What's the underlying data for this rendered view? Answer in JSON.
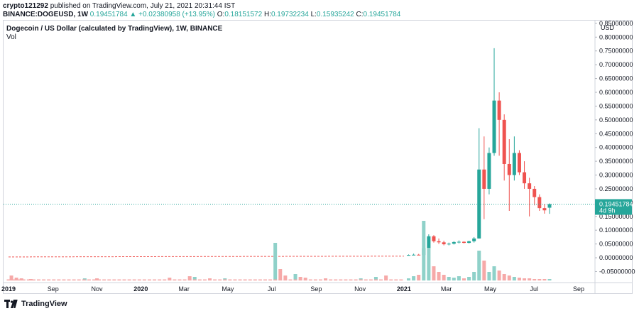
{
  "header": {
    "author": "crypto121292",
    "published": "published on TradingView.com, July 21, 2021 20:31:44 IST",
    "symbol": "BINANCE:DOGEUSD, 1W",
    "last": "0.19451784",
    "change": "▲ +0.02380958 (+13.95%)",
    "o_label": "O:",
    "o_value": "0.18151572",
    "h_label": "H:",
    "h_value": "0.19732234",
    "l_label": "L:",
    "l_value": "0.15935242",
    "c_label": "C:",
    "c_value": "0.19451784"
  },
  "footer": {
    "brand": "TradingView",
    "logo_icon": "tradingview-logo-icon"
  },
  "colors": {
    "up": "#26a69a",
    "down": "#ef5350",
    "up_vol": "#8fd1c9",
    "down_vol": "#f6a9a8"
  },
  "chart_data": {
    "type": "candlestick",
    "title": "Dogecoin / US Dollar (calculated by TradingView), 1W, BINANCE",
    "volume_label": "Vol",
    "y_unit": "USD",
    "ylim": [
      -0.09,
      0.86
    ],
    "y_ticks": [
      "0.85000000",
      "0.80000000",
      "0.75000000",
      "0.70000000",
      "0.65000000",
      "0.60000000",
      "0.55000000",
      "0.50000000",
      "0.45000000",
      "0.40000000",
      "0.35000000",
      "0.30000000",
      "0.25000000",
      "0.20000000",
      "0.15000000",
      "0.10000000",
      "0.05000000",
      "0.00000000",
      "-0.05000000"
    ],
    "x_ticks": [
      {
        "label": "2019",
        "year": true
      },
      {
        "label": "Sep",
        "year": false
      },
      {
        "label": "Nov",
        "year": false
      },
      {
        "label": "2020",
        "year": true
      },
      {
        "label": "Mar",
        "year": false
      },
      {
        "label": "May",
        "year": false
      },
      {
        "label": "Jul",
        "year": false
      },
      {
        "label": "Sep",
        "year": false
      },
      {
        "label": "Nov",
        "year": false
      },
      {
        "label": "2021",
        "year": true
      },
      {
        "label": "Mar",
        "year": false
      },
      {
        "label": "May",
        "year": false
      },
      {
        "label": "Jul",
        "year": false
      },
      {
        "label": "Sep",
        "year": false
      }
    ],
    "last_price": "0.19451784",
    "last_countdown": "4d 9h",
    "candles": [
      {
        "date": "2021-01-04",
        "o": 0.01,
        "h": 0.012,
        "l": 0.008,
        "c": 0.01
      },
      {
        "date": "2021-01-11",
        "o": 0.01,
        "h": 0.015,
        "l": 0.009,
        "c": 0.011
      },
      {
        "date": "2021-01-18",
        "o": 0.011,
        "h": 0.014,
        "l": 0.009,
        "c": 0.01
      },
      {
        "date": "2021-01-25",
        "o": 0.01,
        "h": 0.08,
        "l": 0.008,
        "c": 0.035
      },
      {
        "date": "2021-02-01",
        "o": 0.035,
        "h": 0.085,
        "l": 0.028,
        "c": 0.078
      },
      {
        "date": "2021-02-08",
        "o": 0.078,
        "h": 0.082,
        "l": 0.055,
        "c": 0.06
      },
      {
        "date": "2021-02-15",
        "o": 0.06,
        "h": 0.07,
        "l": 0.05,
        "c": 0.056
      },
      {
        "date": "2021-02-22",
        "o": 0.056,
        "h": 0.062,
        "l": 0.045,
        "c": 0.049
      },
      {
        "date": "2021-03-01",
        "o": 0.049,
        "h": 0.055,
        "l": 0.045,
        "c": 0.051
      },
      {
        "date": "2021-03-08",
        "o": 0.051,
        "h": 0.06,
        "l": 0.048,
        "c": 0.057
      },
      {
        "date": "2021-03-15",
        "o": 0.057,
        "h": 0.063,
        "l": 0.052,
        "c": 0.058
      },
      {
        "date": "2021-03-22",
        "o": 0.058,
        "h": 0.06,
        "l": 0.052,
        "c": 0.054
      },
      {
        "date": "2021-03-29",
        "o": 0.054,
        "h": 0.062,
        "l": 0.052,
        "c": 0.06
      },
      {
        "date": "2021-04-05",
        "o": 0.06,
        "h": 0.075,
        "l": 0.055,
        "c": 0.07
      },
      {
        "date": "2021-04-12",
        "o": 0.07,
        "h": 0.47,
        "l": 0.07,
        "c": 0.32
      },
      {
        "date": "2021-04-19",
        "o": 0.32,
        "h": 0.44,
        "l": 0.14,
        "c": 0.25
      },
      {
        "date": "2021-04-26",
        "o": 0.25,
        "h": 0.4,
        "l": 0.23,
        "c": 0.38
      },
      {
        "date": "2021-05-03",
        "o": 0.38,
        "h": 0.76,
        "l": 0.37,
        "c": 0.57
      },
      {
        "date": "2021-05-10",
        "o": 0.57,
        "h": 0.6,
        "l": 0.37,
        "c": 0.5
      },
      {
        "date": "2021-05-17",
        "o": 0.5,
        "h": 0.52,
        "l": 0.28,
        "c": 0.34
      },
      {
        "date": "2021-05-24",
        "o": 0.34,
        "h": 0.43,
        "l": 0.17,
        "c": 0.3
      },
      {
        "date": "2021-05-31",
        "o": 0.3,
        "h": 0.44,
        "l": 0.28,
        "c": 0.38
      },
      {
        "date": "2021-06-07",
        "o": 0.38,
        "h": 0.39,
        "l": 0.3,
        "c": 0.31
      },
      {
        "date": "2021-06-14",
        "o": 0.31,
        "h": 0.35,
        "l": 0.25,
        "c": 0.27
      },
      {
        "date": "2021-06-21",
        "o": 0.27,
        "h": 0.29,
        "l": 0.15,
        "c": 0.25
      },
      {
        "date": "2021-06-28",
        "o": 0.25,
        "h": 0.26,
        "l": 0.19,
        "c": 0.22
      },
      {
        "date": "2021-07-05",
        "o": 0.22,
        "h": 0.23,
        "l": 0.17,
        "c": 0.18
      },
      {
        "date": "2021-07-12",
        "o": 0.18,
        "h": 0.195,
        "l": 0.16,
        "c": 0.172
      },
      {
        "date": "2021-07-19",
        "o": 0.1815,
        "h": 0.1973,
        "l": 0.1594,
        "c": 0.1945
      }
    ]
  }
}
